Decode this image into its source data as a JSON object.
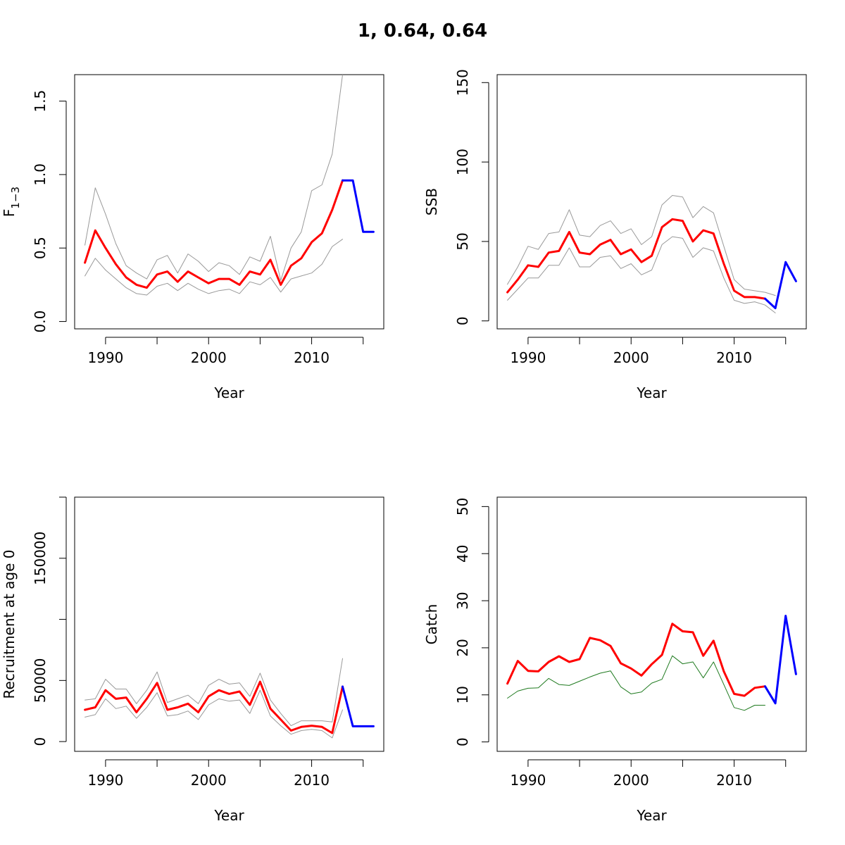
{
  "title": "1, 0.64, 0.64",
  "colors": {
    "estimate": "#ff0000",
    "ci": "#999999",
    "projection": "#0000ff",
    "observed": "#1f7a1f",
    "axes": "#000000"
  },
  "chart_data": [
    {
      "type": "line",
      "panel": "fishing-mortality",
      "ylabel_main": "F",
      "ylabel_sub": "1−3",
      "xlabel": "Year",
      "xlim": [
        1987,
        2017
      ],
      "ylim": [
        -0.05,
        1.68
      ],
      "xticks": [
        1990,
        1995,
        2000,
        2005,
        2010,
        2015
      ],
      "xtick_labels": [
        "1990",
        "",
        "2000",
        "",
        "2010",
        ""
      ],
      "yticks": [
        0,
        0.5,
        1,
        1.5
      ],
      "ytick_labels": [
        "0.0",
        "0.5",
        "1.0",
        "1.5"
      ],
      "series": [
        {
          "role": "upper",
          "color": "#999999",
          "width": 1,
          "x": [
            1988,
            1989,
            1990,
            1991,
            1992,
            1993,
            1994,
            1995,
            1996,
            1997,
            1998,
            1999,
            2000,
            2001,
            2002,
            2003,
            2004,
            2005,
            2006,
            2007,
            2008,
            2009,
            2010,
            2011,
            2012,
            2013
          ],
          "y": [
            0.52,
            0.91,
            0.73,
            0.53,
            0.38,
            0.33,
            0.29,
            0.42,
            0.45,
            0.33,
            0.46,
            0.41,
            0.34,
            0.4,
            0.38,
            0.32,
            0.44,
            0.41,
            0.58,
            0.28,
            0.5,
            0.61,
            0.89,
            0.93,
            1.14,
            1.68
          ]
        },
        {
          "role": "lower",
          "color": "#999999",
          "width": 1,
          "x": [
            1988,
            1989,
            1990,
            1991,
            1992,
            1993,
            1994,
            1995,
            1996,
            1997,
            1998,
            1999,
            2000,
            2001,
            2002,
            2003,
            2004,
            2005,
            2006,
            2007,
            2008,
            2009,
            2010,
            2011,
            2012,
            2013
          ],
          "y": [
            0.31,
            0.43,
            0.35,
            0.29,
            0.23,
            0.19,
            0.18,
            0.24,
            0.26,
            0.21,
            0.26,
            0.22,
            0.19,
            0.21,
            0.22,
            0.19,
            0.27,
            0.25,
            0.3,
            0.2,
            0.29,
            0.31,
            0.33,
            0.39,
            0.51,
            0.56
          ]
        },
        {
          "role": "estimate",
          "color": "#ff0000",
          "width": 3,
          "x": [
            1988,
            1989,
            1990,
            1991,
            1992,
            1993,
            1994,
            1995,
            1996,
            1997,
            1998,
            1999,
            2000,
            2001,
            2002,
            2003,
            2004,
            2005,
            2006,
            2007,
            2008,
            2009,
            2010,
            2011,
            2012,
            2013
          ],
          "y": [
            0.4,
            0.62,
            0.5,
            0.39,
            0.3,
            0.25,
            0.23,
            0.32,
            0.34,
            0.27,
            0.34,
            0.3,
            0.26,
            0.29,
            0.29,
            0.25,
            0.34,
            0.32,
            0.42,
            0.25,
            0.38,
            0.43,
            0.54,
            0.6,
            0.76,
            0.96
          ]
        },
        {
          "role": "projection",
          "color": "#0000ff",
          "width": 3,
          "x": [
            2013,
            2014,
            2015,
            2016
          ],
          "y": [
            0.96,
            0.96,
            0.61,
            0.61
          ]
        }
      ]
    },
    {
      "type": "line",
      "panel": "ssb",
      "ylabel": "SSB",
      "xlabel": "Year",
      "xlim": [
        1987,
        2017
      ],
      "ylim": [
        -5,
        155
      ],
      "xticks": [
        1990,
        1995,
        2000,
        2005,
        2010,
        2015
      ],
      "xtick_labels": [
        "1990",
        "",
        "2000",
        "",
        "2010",
        ""
      ],
      "yticks": [
        0,
        50,
        100,
        150
      ],
      "ytick_labels": [
        "0",
        "50",
        "100",
        "150"
      ],
      "series": [
        {
          "role": "upper",
          "color": "#999999",
          "width": 1,
          "x": [
            1988,
            1989,
            1990,
            1991,
            1992,
            1993,
            1994,
            1995,
            1996,
            1997,
            1998,
            1999,
            2000,
            2001,
            2002,
            2003,
            2004,
            2005,
            2006,
            2007,
            2008,
            2009,
            2010,
            2011,
            2012,
            2013,
            2014
          ],
          "y": [
            23,
            34,
            47,
            45,
            55,
            56,
            70,
            54,
            53,
            60,
            63,
            55,
            58,
            48,
            53,
            73,
            79,
            78,
            65,
            72,
            68,
            47,
            26,
            20,
            19,
            18,
            16
          ]
        },
        {
          "role": "lower",
          "color": "#999999",
          "width": 1,
          "x": [
            1988,
            1989,
            1990,
            1991,
            1992,
            1993,
            1994,
            1995,
            1996,
            1997,
            1998,
            1999,
            2000,
            2001,
            2002,
            2003,
            2004,
            2005,
            2006,
            2007,
            2008,
            2009,
            2010,
            2011,
            2012,
            2013,
            2014
          ],
          "y": [
            13,
            20,
            27,
            27,
            35,
            35,
            46,
            34,
            34,
            40,
            41,
            33,
            36,
            29,
            32,
            48,
            53,
            52,
            40,
            46,
            44,
            27,
            13,
            11,
            12,
            10,
            5
          ]
        },
        {
          "role": "estimate",
          "color": "#ff0000",
          "width": 3,
          "x": [
            1988,
            1989,
            1990,
            1991,
            1992,
            1993,
            1994,
            1995,
            1996,
            1997,
            1998,
            1999,
            2000,
            2001,
            2002,
            2003,
            2004,
            2005,
            2006,
            2007,
            2008,
            2009,
            2010,
            2011,
            2012,
            2013
          ],
          "y": [
            18,
            26,
            35,
            34,
            43,
            44,
            56,
            43,
            42,
            48,
            51,
            42,
            45,
            37,
            41,
            59,
            64,
            63,
            50,
            57,
            55,
            36,
            19,
            15,
            15,
            14
          ]
        },
        {
          "role": "projection",
          "color": "#0000ff",
          "width": 3,
          "x": [
            2013,
            2014,
            2015,
            2016
          ],
          "y": [
            14,
            8,
            37,
            25
          ]
        }
      ]
    },
    {
      "type": "line",
      "panel": "recruitment",
      "ylabel": "Recruitment at age 0",
      "xlabel": "Year",
      "xlim": [
        1987,
        2017
      ],
      "ylim": [
        -8000,
        200000
      ],
      "xticks": [
        1990,
        1995,
        2000,
        2005,
        2010,
        2015
      ],
      "xtick_labels": [
        "1990",
        "",
        "2000",
        "",
        "2010",
        ""
      ],
      "yticks": [
        0,
        50000,
        100000,
        150000,
        200000
      ],
      "ytick_labels": [
        "0",
        "50000",
        "",
        "150000",
        ""
      ],
      "series": [
        {
          "role": "upper",
          "color": "#999999",
          "width": 1,
          "x": [
            1988,
            1989,
            1990,
            1991,
            1992,
            1993,
            1994,
            1995,
            1996,
            1997,
            1998,
            1999,
            2000,
            2001,
            2002,
            2003,
            2004,
            2005,
            2006,
            2007,
            2008,
            2009,
            2010,
            2011,
            2012,
            2013
          ],
          "y": [
            34000,
            35000,
            51000,
            43000,
            43000,
            31000,
            42000,
            57000,
            32000,
            35000,
            38000,
            31000,
            46000,
            51000,
            47000,
            48000,
            37000,
            56000,
            34000,
            23000,
            13000,
            17000,
            17000,
            17000,
            16000,
            68000
          ]
        },
        {
          "role": "lower",
          "color": "#999999",
          "width": 1,
          "x": [
            1988,
            1989,
            1990,
            1991,
            1992,
            1993,
            1994,
            1995,
            1996,
            1997,
            1998,
            1999,
            2000,
            2001,
            2002,
            2003,
            2004,
            2005,
            2006,
            2007,
            2008,
            2009,
            2010,
            2011,
            2012,
            2013
          ],
          "y": [
            20000,
            22000,
            35000,
            27000,
            29000,
            19000,
            28000,
            40000,
            21000,
            22000,
            25000,
            18000,
            30000,
            35000,
            33000,
            34000,
            23000,
            42000,
            21000,
            13000,
            6000,
            9000,
            10000,
            9000,
            3000,
            26000
          ]
        },
        {
          "role": "estimate",
          "color": "#ff0000",
          "width": 3,
          "x": [
            1988,
            1989,
            1990,
            1991,
            1992,
            1993,
            1994,
            1995,
            1996,
            1997,
            1998,
            1999,
            2000,
            2001,
            2002,
            2003,
            2004,
            2005,
            2006,
            2007,
            2008,
            2009,
            2010,
            2011,
            2012,
            2013
          ],
          "y": [
            26000,
            28000,
            42000,
            35000,
            36000,
            24000,
            35000,
            48000,
            26000,
            28000,
            31000,
            24000,
            37000,
            42000,
            39000,
            41000,
            30000,
            49000,
            27000,
            18000,
            9000,
            12000,
            13000,
            12000,
            7000,
            45000
          ]
        },
        {
          "role": "projection",
          "color": "#0000ff",
          "width": 3,
          "x": [
            2013,
            2014,
            2015,
            2016
          ],
          "y": [
            45000,
            12500,
            12500,
            12500
          ]
        }
      ]
    },
    {
      "type": "line",
      "panel": "catch",
      "ylabel": "Catch",
      "xlabel": "Year",
      "xlim": [
        1987,
        2017
      ],
      "ylim": [
        -2,
        52
      ],
      "xticks": [
        1990,
        1995,
        2000,
        2005,
        2010,
        2015
      ],
      "xtick_labels": [
        "1990",
        "",
        "2000",
        "",
        "2010",
        ""
      ],
      "yticks": [
        0,
        10,
        20,
        30,
        40,
        50
      ],
      "ytick_labels": [
        "0",
        "10",
        "20",
        "30",
        "40",
        "50"
      ],
      "series": [
        {
          "role": "observed",
          "color": "#1f7a1f",
          "width": 1,
          "x": [
            1988,
            1989,
            1990,
            1991,
            1992,
            1993,
            1994,
            1995,
            1996,
            1997,
            1998,
            1999,
            2000,
            2001,
            2002,
            2003,
            2004,
            2005,
            2006,
            2007,
            2008,
            2009,
            2010,
            2011,
            2012,
            2013
          ],
          "y": [
            9.3,
            10.8,
            11.4,
            11.5,
            13.5,
            12.2,
            12.0,
            12.9,
            13.8,
            14.6,
            15.1,
            11.7,
            10.2,
            10.6,
            12.5,
            13.3,
            18.3,
            16.6,
            17.0,
            13.6,
            17.0,
            12.2,
            7.3,
            6.7,
            7.8,
            7.8
          ]
        },
        {
          "role": "estimate",
          "color": "#ff0000",
          "width": 3,
          "x": [
            1988,
            1989,
            1990,
            1991,
            1992,
            1993,
            1994,
            1995,
            1996,
            1997,
            1998,
            1999,
            2000,
            2001,
            2002,
            2003,
            2004,
            2005,
            2006,
            2007,
            2008,
            2009,
            2010,
            2011,
            2012,
            2013
          ],
          "y": [
            12.4,
            17.2,
            15.1,
            15.0,
            17.0,
            18.2,
            17.0,
            17.6,
            22.1,
            21.6,
            20.4,
            16.7,
            15.6,
            14.1,
            16.5,
            18.5,
            25.1,
            23.5,
            23.3,
            18.3,
            21.5,
            15.0,
            10.2,
            9.8,
            11.5,
            11.8
          ]
        },
        {
          "role": "projection",
          "color": "#0000ff",
          "width": 3,
          "x": [
            2013,
            2014,
            2015,
            2016
          ],
          "y": [
            11.8,
            8.2,
            26.8,
            14.4
          ]
        }
      ]
    }
  ]
}
